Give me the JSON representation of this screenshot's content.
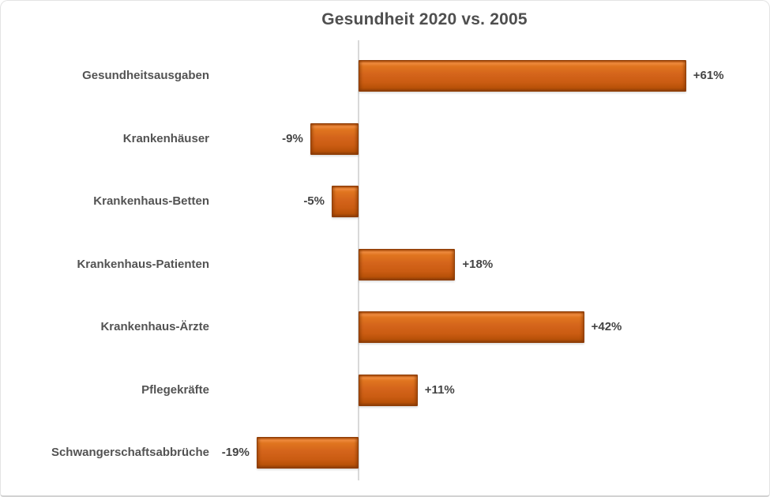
{
  "chart_data": {
    "type": "bar",
    "orientation": "horizontal",
    "title": "Gesundheit 2020 vs. 2005",
    "categories": [
      "Gesundheitsausgaben",
      "Krankenhäuser",
      "Krankenhaus-Betten",
      "Krankenhaus-Patienten",
      "Krankenhaus-Ärzte",
      "Pflegekräfte",
      "Schwangerschaftsabbrüche"
    ],
    "values": [
      61,
      -9,
      -5,
      18,
      42,
      11,
      -19
    ],
    "value_labels": [
      "+61%",
      "-9%",
      "-5%",
      "+18%",
      "+42%",
      "+11%",
      "-19%"
    ],
    "unit": "%",
    "baseline": 0,
    "xlim": [
      -25,
      77
    ],
    "grid": false,
    "legend": false,
    "value_label_position": "outside-end",
    "colors": {
      "bar_fill": "#D2641B",
      "bar_fill_highlight": "#EE8A3E",
      "bar_border": "#8E3D06",
      "axis_line": "#D9D9D9",
      "title_text": "#4F4F4F",
      "label_text": "#535353",
      "background": "#FFFFFF",
      "frame_border": "#E3E3E3"
    }
  }
}
